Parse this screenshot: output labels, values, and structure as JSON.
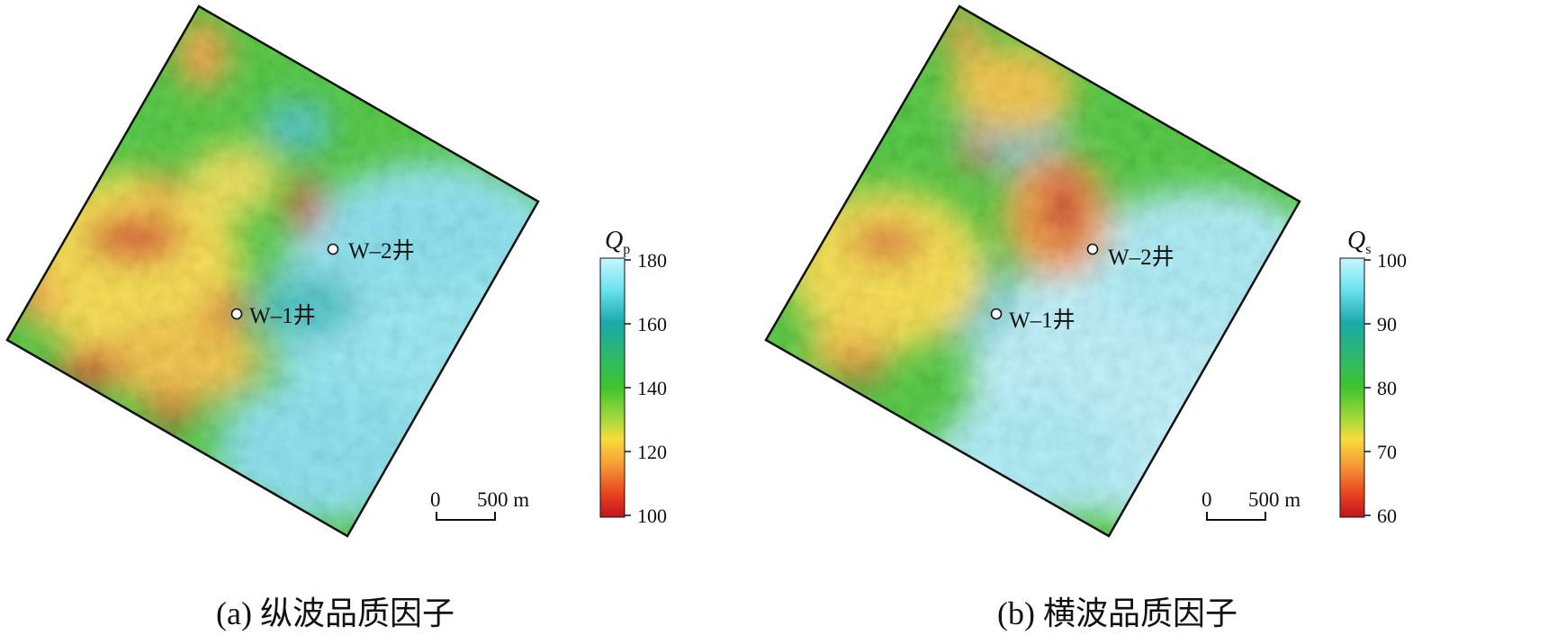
{
  "colors": {
    "low": "#c4131a",
    "mid_low": "#f7dc3c",
    "mid": "#3fc42d",
    "mid_high": "#1aa9a8",
    "high": "#c8f6ff",
    "boundary": "#111111",
    "well_marker": "#ffffff"
  },
  "icons": {
    "well_marker": "circle-well-icon"
  },
  "panels": [
    {
      "caption": "(a) 纵波品质因子",
      "colorbar": {
        "title_symbol": "Q",
        "title_subscript": "p",
        "ticks": [
          "180",
          "160",
          "140",
          "120",
          "100"
        ],
        "vmin": 100,
        "vmax": 180
      },
      "wells": [
        {
          "label": "W–2井"
        },
        {
          "label": "W–1井"
        }
      ],
      "scale_bar": {
        "start": "0",
        "end": "500 m"
      }
    },
    {
      "caption": "(b) 横波品质因子",
      "colorbar": {
        "title_symbol": "Q",
        "title_subscript": "s",
        "ticks": [
          "100",
          "90",
          "80",
          "70",
          "60"
        ],
        "vmin": 60,
        "vmax": 100
      },
      "wells": [
        {
          "label": "W–2井"
        },
        {
          "label": "W–1井"
        }
      ],
      "scale_bar": {
        "start": "0",
        "end": "500 m"
      }
    }
  ]
}
